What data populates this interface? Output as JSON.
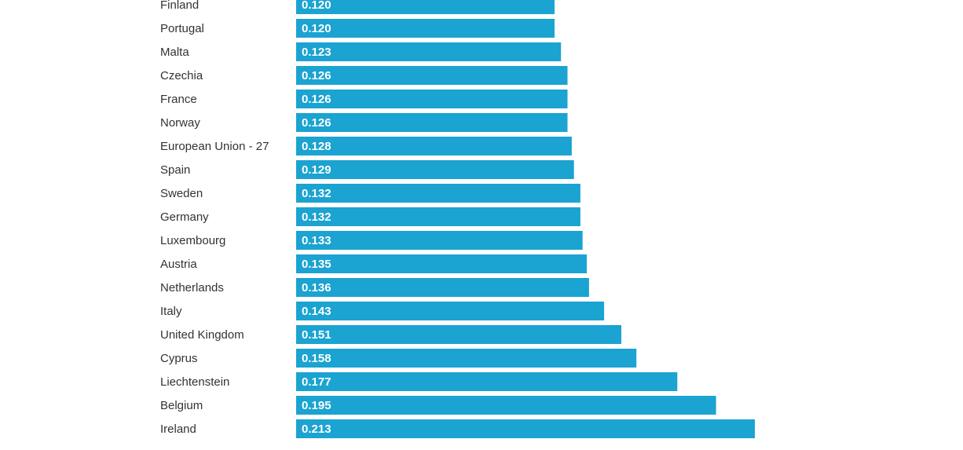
{
  "chart_data": {
    "type": "bar",
    "orientation": "horizontal",
    "categories": [
      "Finland",
      "Portugal",
      "Malta",
      "Czechia",
      "France",
      "Norway",
      "European Union - 27",
      "Spain",
      "Sweden",
      "Germany",
      "Luxembourg",
      "Austria",
      "Netherlands",
      "Italy",
      "United Kingdom",
      "Cyprus",
      "Liechtenstein",
      "Belgium",
      "Ireland"
    ],
    "values": [
      0.12,
      0.12,
      0.123,
      0.126,
      0.126,
      0.126,
      0.128,
      0.129,
      0.132,
      0.132,
      0.133,
      0.135,
      0.136,
      0.143,
      0.151,
      0.158,
      0.177,
      0.195,
      0.213
    ],
    "value_labels": [
      "0.120",
      "0.120",
      "0.123",
      "0.126",
      "0.126",
      "0.126",
      "0.128",
      "0.129",
      "0.132",
      "0.132",
      "0.133",
      "0.135",
      "0.136",
      "0.143",
      "0.151",
      "0.158",
      "0.177",
      "0.195",
      "0.213"
    ],
    "title": "",
    "xlabel": "",
    "ylabel": "",
    "xlim": [
      0,
      0.213
    ],
    "grid": false,
    "legend": "none",
    "bar_color": "#1ba3d1",
    "label_color": "#333333",
    "value_label_color": "#ffffff"
  }
}
